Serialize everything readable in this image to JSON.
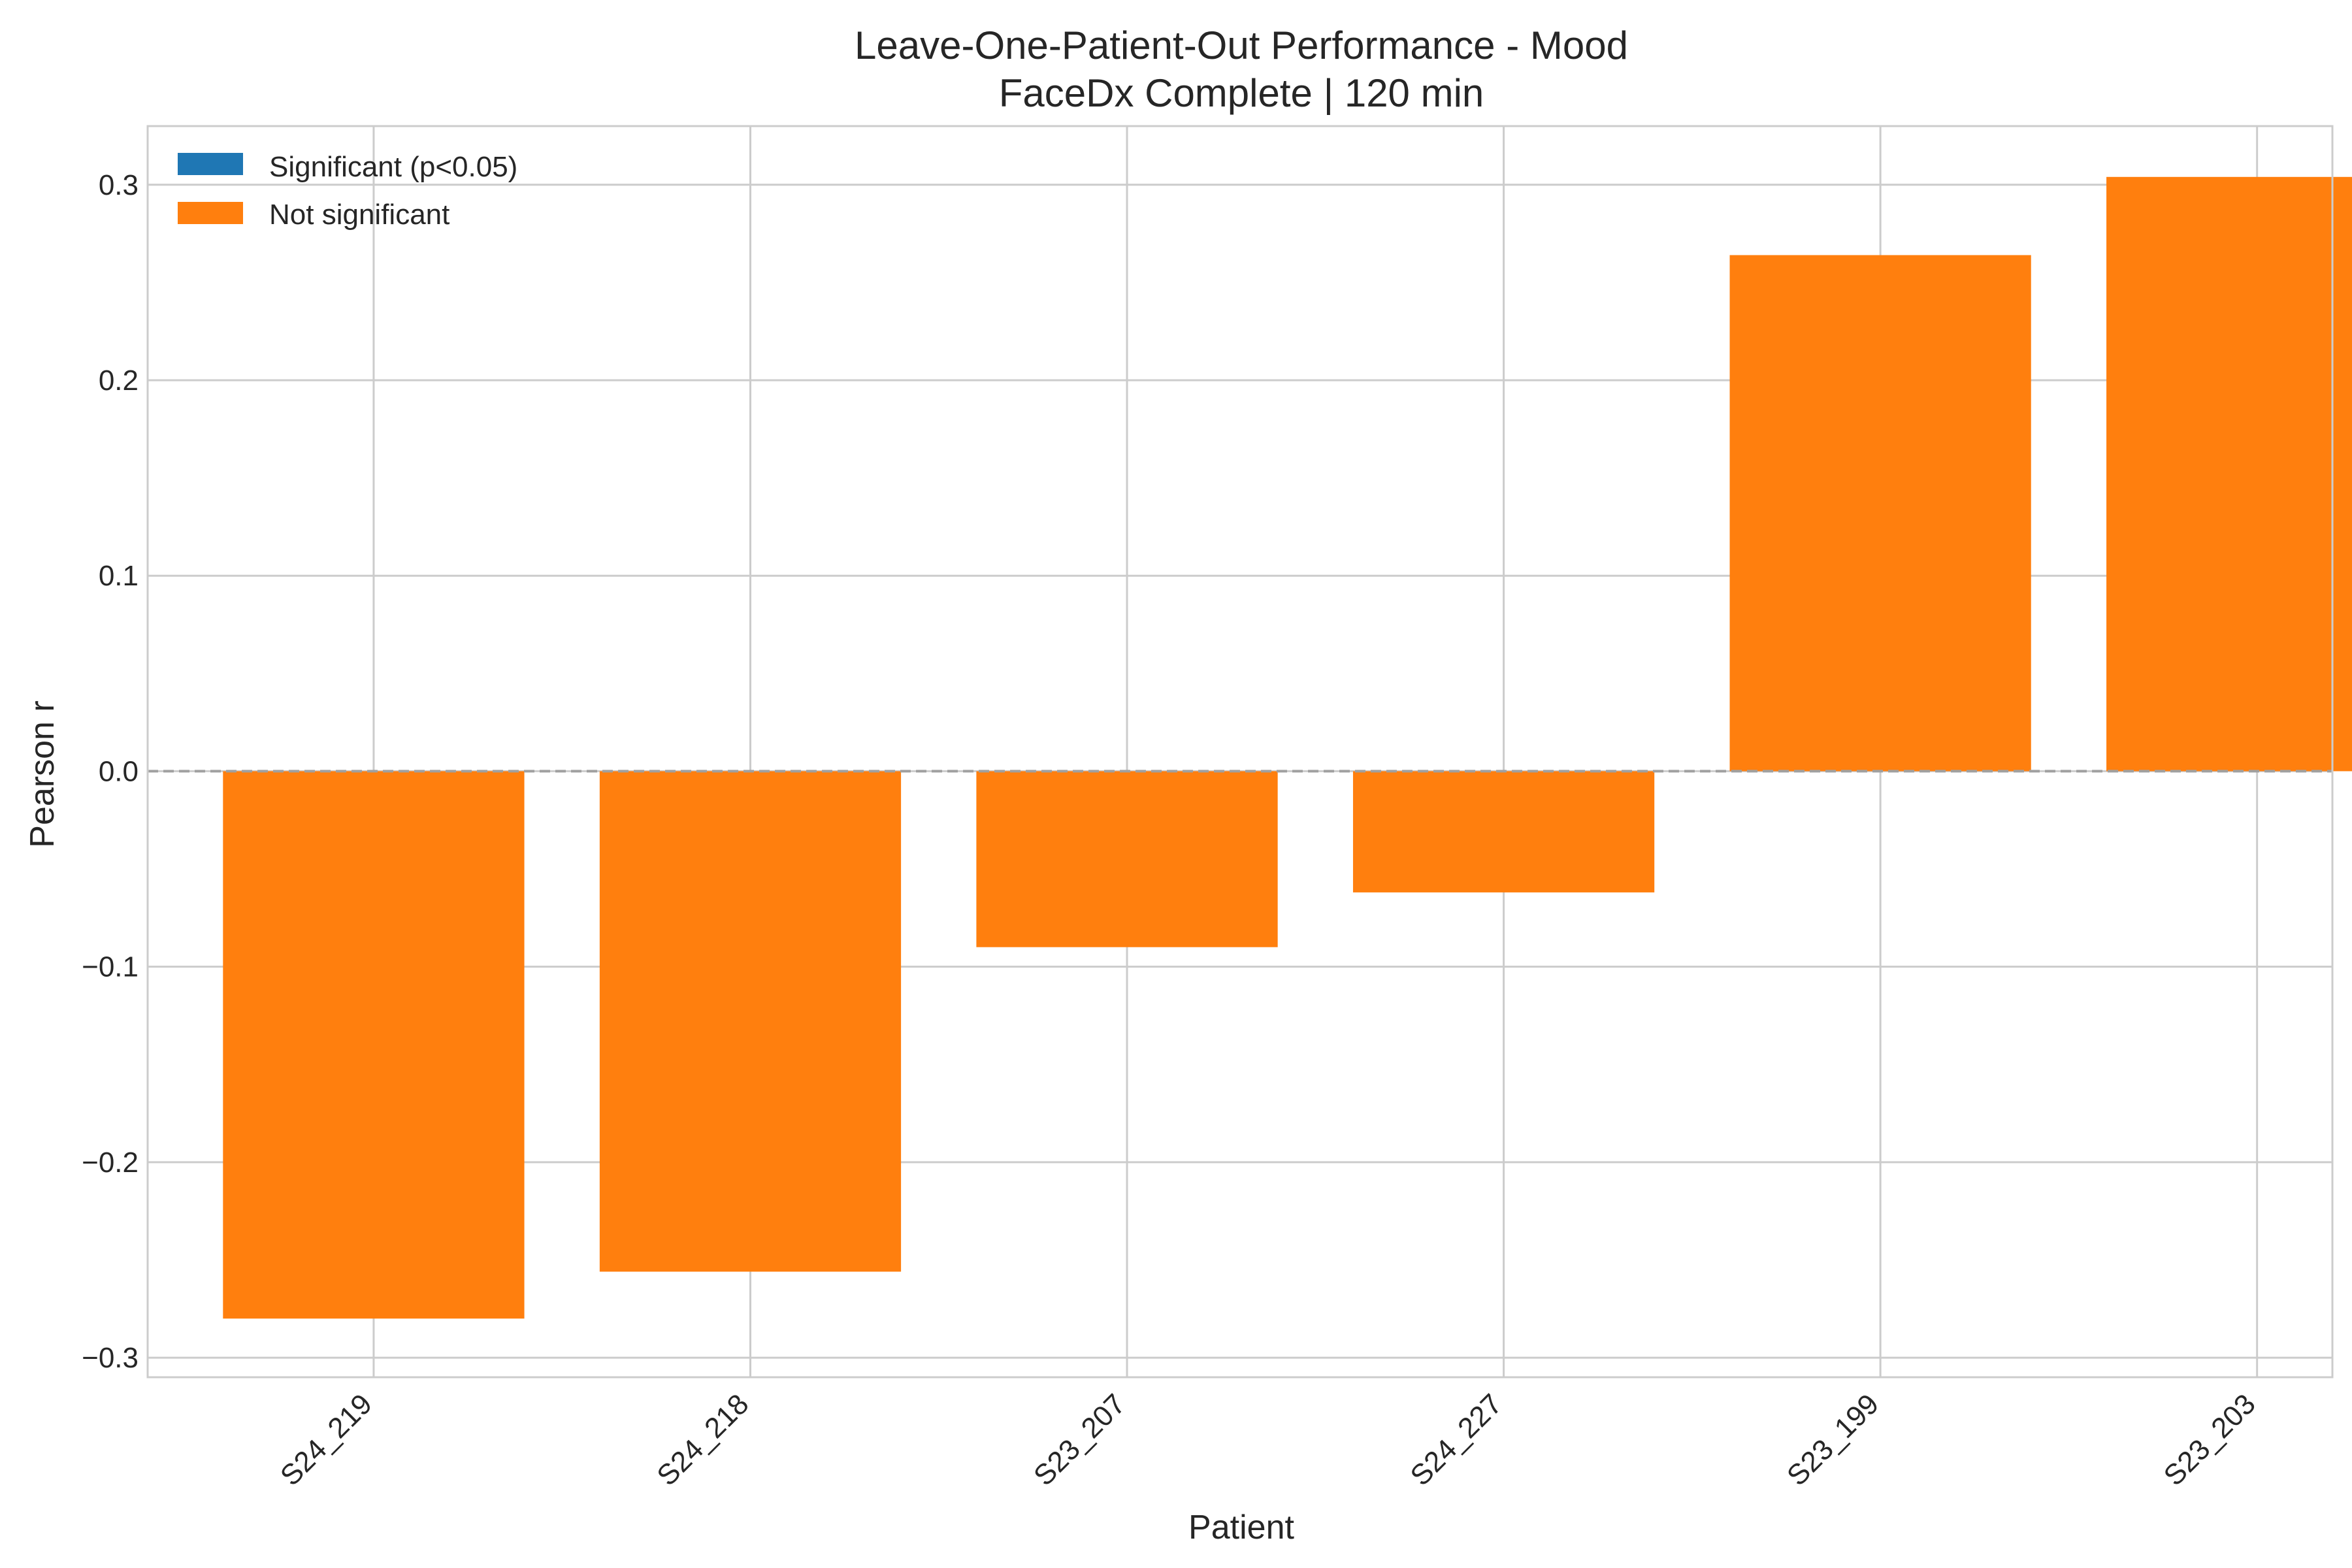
{
  "chart_data": {
    "type": "bar",
    "title": "Leave-One-Patient-Out Performance - Mood",
    "subtitle": "FaceDx Complete | 120 min",
    "xlabel": "Patient",
    "ylabel": "Pearson r",
    "categories": [
      "S24_219",
      "S24_218",
      "S23_207",
      "S24_227",
      "S23_199",
      "S23_203"
    ],
    "values": [
      -0.28,
      -0.256,
      -0.09,
      -0.062,
      0.264,
      0.304
    ],
    "significant": [
      false,
      false,
      false,
      false,
      false,
      false
    ],
    "ylim": [
      -0.31,
      0.33
    ],
    "yticks": [
      -0.3,
      -0.2,
      -0.1,
      0.0,
      0.1,
      0.2,
      0.3
    ],
    "ytick_labels": [
      "−0.3",
      "−0.2",
      "−0.1",
      "0.0",
      "0.1",
      "0.2",
      "0.3"
    ],
    "reference_line": 0,
    "grid": true,
    "legend": {
      "position": "top-left",
      "entries": [
        {
          "label": "Significant (p<0.05)",
          "color": "#1f77b4"
        },
        {
          "label": "Not significant",
          "color": "#ff7f0e"
        }
      ]
    },
    "colors": {
      "significant": "#1f77b4",
      "not_significant": "#ff7f0e",
      "grid": "#cccccc",
      "reference_line": "#a0a0a0",
      "text": "#262626"
    }
  }
}
